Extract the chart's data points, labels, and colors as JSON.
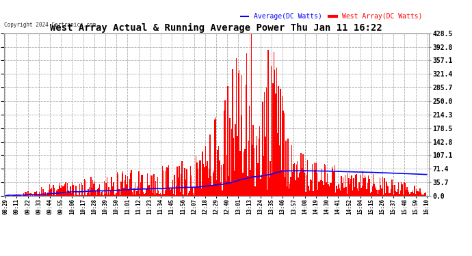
{
  "title": "West Array Actual & Running Average Power Thu Jan 11 16:22",
  "copyright": "Copyright 2024 Cartronics.com",
  "legend_avg": "Average(DC Watts)",
  "legend_west": "West Array(DC Watts)",
  "ylabel_right_ticks": [
    0.0,
    35.7,
    71.4,
    107.1,
    142.8,
    178.5,
    214.3,
    250.0,
    285.7,
    321.4,
    357.1,
    392.8,
    428.5
  ],
  "ylim": [
    0,
    428.5
  ],
  "bg_color": "#ffffff",
  "plot_bg_color": "#ffffff",
  "bar_color": "#ff0000",
  "avg_line_color": "#0000ff",
  "title_color": "#000000",
  "grid_color": "#aaaaaa",
  "xtick_labels": [
    "08:29",
    "09:11",
    "09:22",
    "09:33",
    "09:44",
    "09:55",
    "10:06",
    "10:17",
    "10:28",
    "10:39",
    "10:50",
    "11:01",
    "11:12",
    "11:23",
    "11:34",
    "11:45",
    "11:56",
    "12:07",
    "12:18",
    "12:29",
    "12:40",
    "13:01",
    "13:13",
    "13:24",
    "13:35",
    "13:46",
    "13:57",
    "14:08",
    "14:19",
    "14:30",
    "14:41",
    "14:52",
    "15:04",
    "15:15",
    "15:26",
    "15:37",
    "15:48",
    "15:59",
    "16:10"
  ],
  "n_bars": 450,
  "seed": 123
}
